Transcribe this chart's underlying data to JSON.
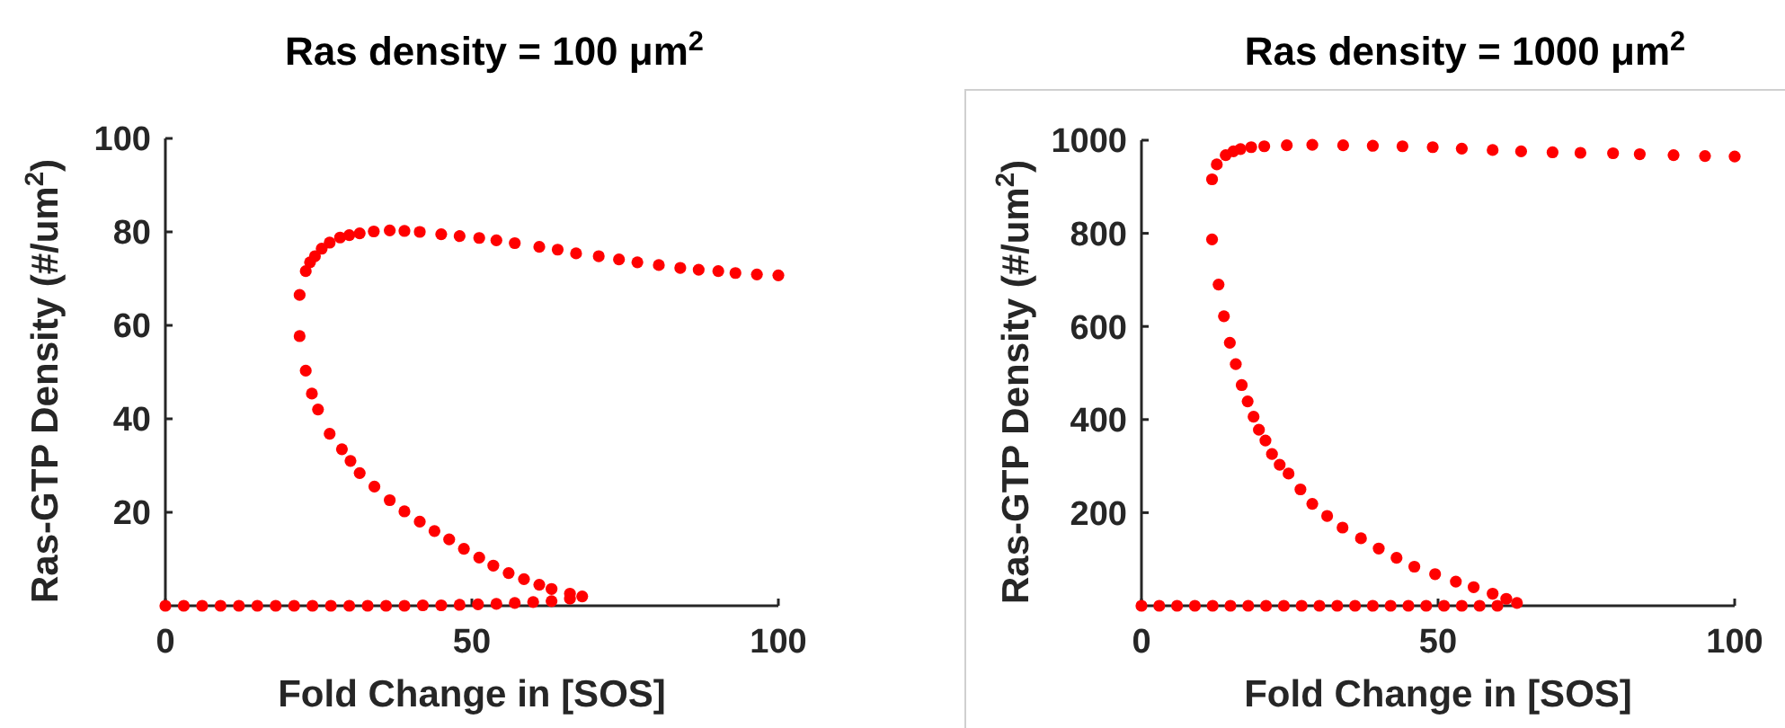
{
  "chart_data": [
    {
      "type": "scatter",
      "title": "Ras density = 100 μm$^{2}$",
      "xlabel": "Fold Change in [SOS]",
      "ylabel": "Ras-GTP Density (#/um$^{2}$)",
      "xlim": [
        0,
        100
      ],
      "xticks": [
        0,
        50,
        100
      ],
      "ylim": [
        0,
        100
      ],
      "yticks": [
        20,
        40,
        60,
        80,
        100
      ],
      "grid": false,
      "marker": "circle",
      "series": [
        {
          "color": "#ff0000",
          "x": [
            0,
            3,
            6,
            9,
            12,
            15,
            18,
            21,
            24,
            27,
            30,
            33,
            36,
            39,
            42,
            45,
            48,
            51,
            54,
            57,
            60,
            63,
            66,
            68,
            66,
            63,
            61,
            58.5,
            56,
            53.5,
            51.2,
            48.7,
            46.3,
            43.9,
            41.5,
            39,
            36.6,
            34.1,
            31.7,
            30.2,
            28.8,
            26.8,
            24.9,
            23.9,
            22.9,
            21.9,
            21.9,
            22.9,
            23.6,
            24.4,
            25.5,
            26.8,
            28.5,
            30,
            31.7,
            34,
            36.6,
            39,
            41.5,
            45,
            48,
            51.2,
            54,
            57,
            61,
            64,
            67,
            70.7,
            74,
            77,
            80.5,
            84,
            87,
            90.2,
            93,
            96.5,
            100
          ],
          "values": [
            0,
            0,
            0,
            0,
            0,
            0,
            0,
            0,
            0,
            0,
            0,
            0,
            0,
            0,
            0.1,
            0.1,
            0.2,
            0.3,
            0.4,
            0.6,
            0.8,
            1,
            1.5,
            2,
            2.6,
            3.6,
            4.5,
            5.7,
            7,
            8.6,
            10.3,
            12.2,
            14.2,
            16,
            18,
            20.2,
            22.6,
            25.5,
            28.4,
            31,
            33.5,
            36.8,
            42,
            45.4,
            50.3,
            57.7,
            66.5,
            71.6,
            73.5,
            74.8,
            76.4,
            77.7,
            78.8,
            79.3,
            79.7,
            80.1,
            80.3,
            80.2,
            80,
            79.5,
            79.1,
            78.7,
            78.2,
            77.6,
            76.8,
            76.2,
            75.4,
            74.8,
            74.1,
            73.5,
            72.9,
            72.3,
            71.9,
            71.6,
            71.2,
            70.9,
            70.7
          ]
        }
      ]
    },
    {
      "type": "scatter",
      "title": "Ras density = 1000 μm$^{2}$",
      "xlabel": "Fold Change in [SOS]",
      "ylabel": "Ras-GTP Density (#/um$^{2}$)",
      "xlim": [
        0,
        100
      ],
      "xticks": [
        0,
        50,
        100
      ],
      "ylim": [
        0,
        1000
      ],
      "yticks": [
        200,
        400,
        600,
        800,
        1000
      ],
      "grid": false,
      "marker": "circle",
      "series": [
        {
          "color": "#ff0000",
          "x": [
            0,
            3,
            6,
            9,
            12,
            15,
            18,
            21,
            24,
            27,
            30,
            33,
            36,
            39,
            42,
            45,
            48,
            51,
            54,
            57,
            60,
            63.3,
            61.5,
            59.2,
            56,
            53,
            49.5,
            46,
            43,
            40,
            37,
            33.9,
            31.3,
            28.8,
            26.8,
            24.8,
            23.3,
            22,
            20.9,
            19.8,
            18.9,
            17.9,
            16.9,
            15.9,
            14.9,
            13.9,
            13,
            11.9,
            11.9,
            12.7,
            14.2,
            15.5,
            16.7,
            18.5,
            20.7,
            24.5,
            28.8,
            34,
            39,
            44,
            49.1,
            54,
            59.2,
            64,
            69.3,
            74,
            79.5,
            84,
            89.7,
            95,
            100
          ],
          "values": [
            0,
            0,
            0,
            0,
            0,
            0,
            0,
            0,
            0,
            0,
            0,
            0,
            0,
            0,
            0,
            0,
            0,
            0,
            0,
            0,
            0,
            6,
            15,
            26,
            40,
            52,
            68,
            84,
            103,
            123,
            145,
            168,
            193,
            219,
            250,
            284,
            303,
            326,
            355,
            378,
            406,
            439,
            474,
            519,
            565,
            622,
            690,
            787,
            916,
            948,
            968,
            976,
            981,
            985,
            987,
            989,
            990,
            989,
            988,
            987,
            985,
            982,
            979,
            976,
            974,
            973,
            972,
            970,
            968,
            966,
            965
          ]
        }
      ]
    }
  ]
}
